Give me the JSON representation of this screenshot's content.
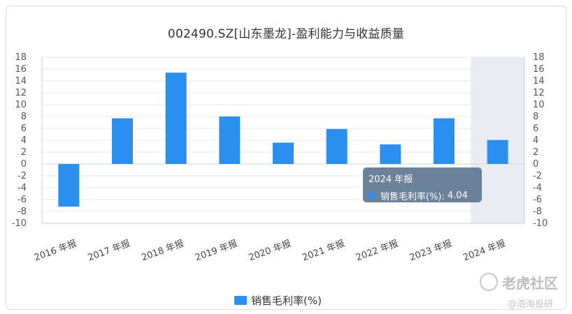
{
  "chart_data": {
    "type": "bar",
    "title": "002490.SZ[山东墨龙]-盈利能力与收益质量",
    "categories": [
      "2016 年报",
      "2017 年报",
      "2018 年报",
      "2019 年报",
      "2020 年报",
      "2021 年报",
      "2022 年报",
      "2023 年报",
      "2024 年报"
    ],
    "series": [
      {
        "name": "销售毛利率(%)",
        "values": [
          -7.2,
          7.7,
          15.4,
          8.0,
          3.6,
          5.9,
          3.3,
          7.7,
          4.04
        ]
      }
    ],
    "ylim": [
      -10,
      18
    ],
    "yticks": [
      18,
      16,
      14,
      12,
      10,
      8,
      6,
      4,
      2,
      0,
      -2,
      -4,
      -6,
      -8,
      -10
    ],
    "grid": true,
    "legend_position": "bottom",
    "highlighted_category": "2024 年报",
    "bar_color": "#2b8ff0"
  },
  "tooltip": {
    "title": "2024 年报",
    "series_label": "销售毛利率(%):",
    "value": "4.04"
  },
  "legend": {
    "label": "销售毛利率(%)"
  },
  "watermark": {
    "brand": "老虎社区",
    "handle": "@浩海投研"
  }
}
